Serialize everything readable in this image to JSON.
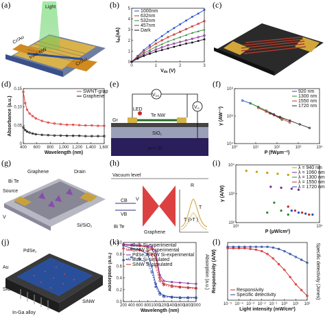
{
  "figure": {
    "panel_labels": [
      "(a)",
      "(b)",
      "(c)",
      "(d)",
      "(e)",
      "(f)",
      "(g)",
      "(h)",
      "(i)",
      "(j)",
      "(k)",
      "(l)"
    ]
  },
  "panel_a": {
    "light": "Light",
    "electrode_left": "Cr/Au",
    "electrode_right": "Cr/Au",
    "nanowire": "InAs NW"
  },
  "panel_e": {
    "vds": "V",
    "vds_sub": "DS",
    "vg": "V",
    "vg_sub": "G",
    "led": "LED",
    "nw": "Te NW",
    "gr": "Gr",
    "oxide": "SiO",
    "oxide_sub": "2",
    "substrate": "p++ Si"
  },
  "panel_g": {
    "graphene": "Graphene",
    "bi2te3": "Bi Te",
    "source": "Source",
    "drain": "Drain",
    "vg": "V",
    "substrate": "Si/SiO",
    "substrate_sub": "2"
  },
  "panel_h": {
    "vacuum": "Vacuum level",
    "cb": "CB",
    "vb": "VB",
    "bi2te3": "Bi Te",
    "graphene": "Graphene",
    "vg": "V",
    "r": "R",
    "t1": "T",
    "t2": "T (>T )"
  },
  "panel_j": {
    "pdse2": "PdSe",
    "pdse2_sub": "2",
    "au": "Au",
    "sio2": "SiO",
    "sinw": "SiNW",
    "alloy": "In-Ga alloy"
  },
  "charts": [
    {
      "chart_data": {
        "type": "line",
        "xlabel": "V",
        "xlabel_sub": "ds",
        "xlabel_unit": " (V)",
        "ylabel": "I",
        "ylabel_sub": "ds",
        "ylabel_unit": "(nA)",
        "xticks": [
          "0",
          "1",
          "2",
          "3"
        ],
        "yticks": [
          "0",
          "1",
          "2",
          "3",
          "4",
          "5"
        ],
        "xlim": [
          0,
          3
        ],
        "ylim": [
          0,
          5
        ],
        "legend_position": "top-left",
        "series": [
          {
            "name": "1000nm",
            "color": "#1f4fd1",
            "marker": "square",
            "x": [
              0,
              0.25,
              0.5,
              0.75,
              1,
              1.25,
              1.5,
              1.75,
              2,
              2.25,
              2.5,
              2.75,
              3
            ],
            "values": [
              0,
              0.55,
              1.1,
              1.55,
              2.0,
              2.4,
              2.8,
              3.15,
              3.5,
              3.85,
              4.2,
              4.5,
              4.85
            ]
          },
          {
            "name": "632nm",
            "color": "#c42a2a",
            "marker": "circle",
            "x": [
              0,
              0.25,
              0.5,
              0.75,
              1,
              1.25,
              1.5,
              1.75,
              2,
              2.25,
              2.5,
              2.75,
              3
            ],
            "values": [
              0,
              0.5,
              0.95,
              1.35,
              1.7,
              2.0,
              2.3,
              2.55,
              2.8,
              3.05,
              3.3,
              3.55,
              3.8
            ]
          },
          {
            "name": "532nm",
            "color": "#2a8a2a",
            "marker": "triangle",
            "x": [
              0,
              0.25,
              0.5,
              0.75,
              1,
              1.25,
              1.5,
              1.75,
              2,
              2.25,
              2.5,
              2.75,
              3
            ],
            "values": [
              0,
              0.4,
              0.8,
              1.1,
              1.4,
              1.65,
              1.9,
              2.1,
              2.3,
              2.5,
              2.7,
              2.85,
              3.0
            ]
          },
          {
            "name": "457nm",
            "color": "#8a2a9a",
            "marker": "circle",
            "x": [
              0,
              0.25,
              0.5,
              0.75,
              1,
              1.25,
              1.5,
              1.75,
              2,
              2.25,
              2.5,
              2.75,
              3
            ],
            "values": [
              0,
              0.35,
              0.65,
              0.9,
              1.15,
              1.35,
              1.55,
              1.7,
              1.85,
              2.0,
              2.15,
              2.3,
              2.45
            ]
          },
          {
            "name": "Dark",
            "color": "#111111",
            "marker": "square",
            "x": [
              0,
              0.25,
              0.5,
              0.75,
              1,
              1.25,
              1.5,
              1.75,
              2,
              2.25,
              2.5,
              2.75,
              3
            ],
            "values": [
              0,
              0.3,
              0.55,
              0.75,
              0.95,
              1.1,
              1.25,
              1.4,
              1.55,
              1.7,
              1.8,
              1.95,
              2.1
            ]
          }
        ]
      }
    },
    {
      "chart_data": {
        "type": "line",
        "xlabel": "Wavelength (nm)",
        "ylabel": "Absorbance (a.u.)",
        "xticks": [
          "400",
          "600",
          "800",
          "1,000",
          "1,200",
          "1,400",
          "1,600"
        ],
        "yticks": [
          "0",
          "0.05",
          "0.10",
          "0.15"
        ],
        "xlim": [
          300,
          1600
        ],
        "ylim": [
          0,
          0.17
        ],
        "legend_position": "top-right",
        "series": [
          {
            "name": "SWNT-graphene",
            "color": "#e0302a",
            "x": [
              300,
              330,
              360,
              400,
              450,
              500,
              600,
              700,
              800,
              900,
              1000,
              1100,
              1200,
              1300,
              1400,
              1500,
              1600
            ],
            "values": [
              0.16,
              0.125,
              0.105,
              0.093,
              0.085,
              0.078,
              0.07,
              0.065,
              0.062,
              0.06,
              0.058,
              0.058,
              0.057,
              0.056,
              0.056,
              0.055,
              0.055
            ]
          },
          {
            "name": "Graphene",
            "color": "#111111",
            "x": [
              300,
              330,
              360,
              400,
              450,
              500,
              600,
              700,
              800,
              900,
              1000,
              1100,
              1200,
              1300,
              1400,
              1500,
              1600
            ],
            "values": [
              0.05,
              0.042,
              0.037,
              0.034,
              0.031,
              0.029,
              0.027,
              0.026,
              0.025,
              0.025,
              0.024,
              0.024,
              0.024,
              0.023,
              0.023,
              0.023,
              0.023
            ]
          }
        ]
      }
    },
    {
      "chart_data": {
        "type": "line",
        "xlabel": "P (fWμm⁻²)",
        "ylabel": "γ (AW⁻¹)",
        "xticks": [
          "10⁰",
          "10¹",
          "10²",
          "10³",
          "10⁴"
        ],
        "yticks": [
          "10⁴",
          "10⁶",
          "10⁸"
        ],
        "xlim": [
          0,
          4.3
        ],
        "ylim": [
          3,
          9
        ],
        "legend_position": "top-right",
        "series": [
          {
            "name": "920 nm",
            "color": "#1f4fd1",
            "x": [
              0.4,
              0.8,
              1.2,
              1.6,
              2.0
            ],
            "values": [
              7.7,
              7.4,
              7.0,
              6.6,
              6.2
            ]
          },
          {
            "name": "1300 nm",
            "color": "#2a8a2a",
            "x": [
              0.8,
              1.2,
              1.6,
              2.0,
              2.4
            ],
            "values": [
              7.4,
              7.0,
              6.6,
              6.1,
              5.6
            ]
          },
          {
            "name": "1550 nm",
            "color": "#c42a2a",
            "x": [
              1.2,
              1.6,
              2.0,
              2.4,
              2.8
            ],
            "values": [
              6.9,
              6.5,
              6.1,
              5.7,
              5.3
            ]
          },
          {
            "name": "1720 nm",
            "color": "#222222",
            "x": [
              1.8,
              2.3,
              2.8,
              3.3,
              3.8
            ],
            "values": [
              6.3,
              5.9,
              5.5,
              5.1,
              4.7
            ]
          }
        ]
      }
    },
    {
      "chart_data": {
        "type": "scatter",
        "xlabel": "P (μW/cm²)",
        "ylabel": "γ (A/W)",
        "xticks": [
          "10³",
          "10⁴"
        ],
        "yticks": [
          "10²",
          "10³",
          "10⁴"
        ],
        "xlim": [
          2,
          4.4
        ],
        "ylim": [
          1.3,
          4.2
        ],
        "legend_position": "top-right",
        "series": [
          {
            "name": "λ = 940 nm",
            "color": "#c9a100",
            "x": [
              2.3,
              2.6,
              2.9,
              3.2,
              3.5
            ],
            "values": [
              3.9,
              3.85,
              3.8,
              3.75,
              3.7
            ]
          },
          {
            "name": "λ = 1060 nm",
            "color": "#7a2a9a",
            "x": [
              3.0,
              3.3,
              3.6,
              3.8
            ],
            "values": [
              3.1,
              3.05,
              3.0,
              2.95
            ]
          },
          {
            "name": "λ = 1300 nm",
            "color": "#2a8a2a",
            "x": [
              2.9,
              3.1,
              3.3,
              3.5
            ],
            "values": [
              1.8,
              2.3,
              1.9,
              1.7
            ]
          },
          {
            "name": "λ = 1550 nm",
            "color": "#c42a2a",
            "x": [
              3.5,
              3.7,
              3.9,
              4.1
            ],
            "values": [
              2.1,
              1.9,
              1.8,
              1.7
            ]
          },
          {
            "name": "λ = 1720 nm",
            "color": "#1f4fd1",
            "x": [
              3.6,
              3.8,
              4.0,
              4.2
            ],
            "values": [
              1.9,
              1.8,
              1.75,
              1.7
            ]
          }
        ]
      }
    },
    {
      "chart_data": {
        "type": "line",
        "xlabel": "Wavelength (nm)",
        "ylabel": "Absorption (a.u.)",
        "y2label": "Absorption (a.u.)",
        "xticks": [
          "200",
          "400",
          "600",
          "800",
          "1000",
          "1200",
          "1400",
          "1600",
          "1800",
          "2000"
        ],
        "yticks": [
          "0.0",
          "0.2",
          "0.4",
          "0.6",
          "0.8",
          "1.0"
        ],
        "xlim": [
          200,
          2000
        ],
        "ylim": [
          0,
          1.0
        ],
        "legend_position": "top-left",
        "series": [
          {
            "name": "Bulk Si-experimental",
            "color": "#1f3fa0",
            "x": [
              200,
              400,
              600,
              800,
              900,
              1000,
              1100,
              1200,
              1400,
              1600,
              1800,
              2000
            ],
            "values": [
              0.95,
              0.9,
              0.88,
              0.8,
              0.6,
              0.3,
              0.15,
              0.1,
              0.08,
              0.07,
              0.07,
              0.07
            ]
          },
          {
            "name": "SiNW Si-experimental",
            "color": "#c42a2a",
            "x": [
              200,
              400,
              600,
              800,
              900,
              1000,
              1100,
              1200,
              1400,
              1600,
              1800,
              2000
            ],
            "values": [
              0.96,
              0.95,
              0.94,
              0.92,
              0.9,
              0.75,
              0.4,
              0.3,
              0.27,
              0.25,
              0.24,
              0.23
            ]
          },
          {
            "name": "PdSe₂/SiNW Si-experimental",
            "color": "#8a2a9a",
            "x": [
              200,
              400,
              600,
              800,
              900,
              1000,
              1100,
              1200,
              1400,
              1600,
              1800,
              2000
            ],
            "values": [
              0.97,
              0.96,
              0.95,
              0.94,
              0.93,
              0.85,
              0.45,
              0.35,
              0.33,
              0.32,
              0.31,
              0.3
            ]
          },
          {
            "name": "Bulk Si-simulated",
            "color": "#1f3fa0",
            "x": [
              200,
              400,
              600,
              800,
              900,
              1000,
              1100,
              1200,
              1400,
              1600,
              1800,
              2000
            ],
            "values": [
              0.7,
              0.75,
              0.72,
              0.65,
              0.5,
              0.25,
              0.12,
              0.08,
              0.07,
              0.06,
              0.06,
              0.06
            ]
          },
          {
            "name": "SiNW Si-simulated",
            "color": "#c42a2a",
            "x": [
              200,
              400,
              600,
              800,
              900,
              1000,
              1100,
              1200,
              1400,
              1600,
              1800,
              2000
            ],
            "values": [
              0.9,
              0.88,
              0.87,
              0.85,
              0.8,
              0.6,
              0.35,
              0.28,
              0.25,
              0.24,
              0.23,
              0.22
            ]
          }
        ]
      }
    },
    {
      "chart_data": {
        "type": "line",
        "xlabel": "Light intensity (mW/cm²)",
        "ylabel": "Responsivity (A/W)",
        "y2label": "Specific detectivity (Jones)",
        "xticks": [
          "10⁻⁵",
          "10⁻⁴",
          "10⁻³",
          "10⁻²",
          "10⁻¹",
          "10⁰",
          "10¹",
          "10²"
        ],
        "xlim": [
          -5,
          2
        ],
        "ylim": [
          -3,
          1
        ],
        "legend_position": "bottom-left",
        "series": [
          {
            "name": "Responsivity",
            "color": "#d62020",
            "x": [
              -5,
              -4.5,
              -4,
              -3.5,
              -3,
              -2.5,
              -2,
              -1.5,
              -1,
              -0.5,
              0,
              0.5,
              1,
              1.5,
              2
            ],
            "values": [
              0.6,
              0.6,
              0.6,
              0.6,
              0.55,
              0.5,
              0.4,
              0.2,
              -0.1,
              -0.5,
              -0.9,
              -1.4,
              -1.9,
              -2.3,
              -2.7
            ]
          },
          {
            "name": "Specific detectivity",
            "color": "#1f3fa0",
            "x": [
              -5,
              -4.5,
              -4,
              -3.5,
              -3,
              -2.5,
              -2,
              -1.5,
              -1,
              -0.5,
              0,
              0.5,
              1,
              1.5,
              2
            ],
            "values": [
              0.7,
              0.7,
              0.7,
              0.7,
              0.7,
              0.7,
              0.7,
              0.7,
              0.65,
              0.55,
              0.4,
              0.2,
              0.0,
              -0.2,
              -0.4
            ]
          }
        ]
      }
    }
  ]
}
